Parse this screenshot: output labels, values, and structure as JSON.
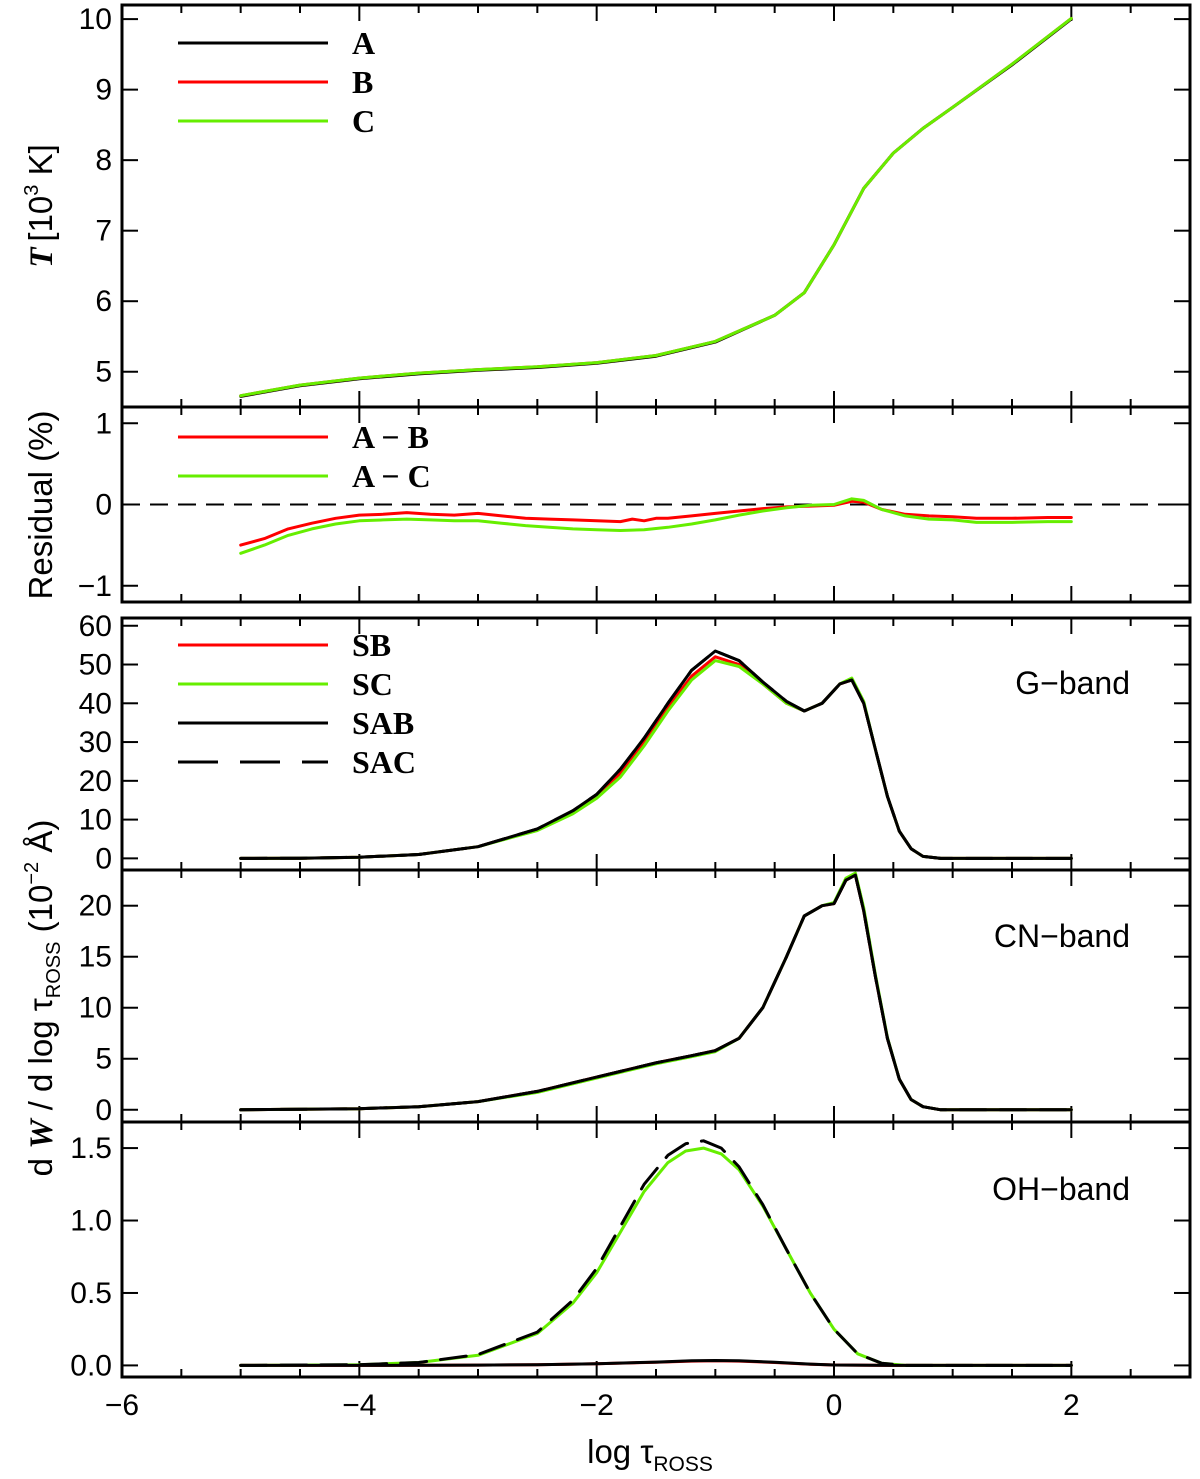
{
  "chart_data": [
    {
      "type": "line",
      "panel": "temperature",
      "ylabel": {
        "sym": "T",
        "rest": "[10",
        "sup": "3",
        "end": " K]"
      },
      "xlim": [
        -6,
        3
      ],
      "ylim": [
        4.5,
        10.2
      ],
      "yticks": [
        "5",
        "6",
        "7",
        "8",
        "9",
        "10"
      ],
      "ytick_values": [
        5,
        6,
        7,
        8,
        9,
        10
      ],
      "legend": [
        "A",
        "B",
        "C"
      ],
      "series": [
        {
          "name": "A",
          "color": "#000000",
          "x": [
            -5,
            -4.5,
            -4,
            -3.5,
            -3,
            -2.5,
            -2,
            -1.5,
            -1,
            -0.5,
            -0.25,
            0,
            0.25,
            0.5,
            0.75,
            1,
            1.5,
            2
          ],
          "y": [
            4.65,
            4.8,
            4.9,
            4.97,
            5.02,
            5.06,
            5.12,
            5.22,
            5.42,
            5.8,
            6.12,
            6.8,
            7.6,
            8.1,
            8.45,
            8.75,
            9.35,
            10.0
          ]
        },
        {
          "name": "B",
          "color": "#ff0000",
          "x": [
            -5,
            -4.5,
            -4,
            -3.5,
            -3,
            -2.5,
            -2,
            -1.5,
            -1,
            -0.5,
            -0.25,
            0,
            0.25,
            0.5,
            0.75,
            1,
            1.5,
            2
          ],
          "y": [
            4.66,
            4.81,
            4.91,
            4.98,
            5.03,
            5.07,
            5.13,
            5.23,
            5.43,
            5.8,
            6.12,
            6.8,
            7.6,
            8.1,
            8.45,
            8.75,
            9.36,
            10.01
          ]
        },
        {
          "name": "C",
          "color": "#66ee00",
          "x": [
            -5,
            -4.5,
            -4,
            -3.5,
            -3,
            -2.5,
            -2,
            -1.5,
            -1,
            -0.5,
            -0.25,
            0,
            0.25,
            0.5,
            0.75,
            1,
            1.5,
            2
          ],
          "y": [
            4.66,
            4.81,
            4.91,
            4.98,
            5.03,
            5.07,
            5.13,
            5.23,
            5.43,
            5.8,
            6.12,
            6.8,
            7.6,
            8.1,
            8.45,
            8.75,
            9.36,
            10.01
          ]
        }
      ]
    },
    {
      "type": "line",
      "panel": "residual",
      "ylabel": "Residual (%)",
      "xlim": [
        -6,
        3
      ],
      "ylim": [
        -1.2,
        1.2
      ],
      "yticks": [
        "−1",
        "0",
        "1"
      ],
      "ytick_values": [
        -1,
        0,
        1
      ],
      "legend": [
        "A − B",
        "A − C"
      ],
      "zero_line": "dashed",
      "series": [
        {
          "name": "A − B",
          "color": "#ff0000",
          "x": [
            -5,
            -4.8,
            -4.6,
            -4.4,
            -4.2,
            -4,
            -3.8,
            -3.6,
            -3.4,
            -3.2,
            -3,
            -2.8,
            -2.6,
            -2.4,
            -2.2,
            -2,
            -1.8,
            -1.7,
            -1.6,
            -1.5,
            -1.4,
            -1.2,
            -1,
            -0.8,
            -0.6,
            -0.4,
            -0.2,
            0,
            0.15,
            0.25,
            0.4,
            0.6,
            0.8,
            1,
            1.2,
            1.5,
            1.8,
            2
          ],
          "y": [
            -0.5,
            -0.42,
            -0.3,
            -0.23,
            -0.17,
            -0.13,
            -0.12,
            -0.1,
            -0.12,
            -0.13,
            -0.11,
            -0.14,
            -0.17,
            -0.18,
            -0.19,
            -0.2,
            -0.21,
            -0.18,
            -0.2,
            -0.17,
            -0.17,
            -0.14,
            -0.11,
            -0.08,
            -0.05,
            -0.03,
            -0.02,
            -0.01,
            0.04,
            0.03,
            -0.06,
            -0.12,
            -0.14,
            -0.15,
            -0.17,
            -0.17,
            -0.16,
            -0.16
          ]
        },
        {
          "name": "A − C",
          "color": "#66ee00",
          "x": [
            -5,
            -4.8,
            -4.6,
            -4.4,
            -4.2,
            -4,
            -3.8,
            -3.6,
            -3.4,
            -3.2,
            -3,
            -2.8,
            -2.6,
            -2.4,
            -2.2,
            -2,
            -1.8,
            -1.6,
            -1.4,
            -1.2,
            -1,
            -0.8,
            -0.6,
            -0.4,
            -0.2,
            0,
            0.15,
            0.25,
            0.4,
            0.6,
            0.8,
            1,
            1.2,
            1.5,
            1.8,
            2
          ],
          "y": [
            -0.6,
            -0.5,
            -0.38,
            -0.3,
            -0.24,
            -0.2,
            -0.19,
            -0.18,
            -0.19,
            -0.2,
            -0.2,
            -0.23,
            -0.26,
            -0.28,
            -0.3,
            -0.31,
            -0.32,
            -0.31,
            -0.28,
            -0.24,
            -0.19,
            -0.13,
            -0.08,
            -0.04,
            -0.01,
            0.0,
            0.07,
            0.05,
            -0.06,
            -0.14,
            -0.18,
            -0.19,
            -0.22,
            -0.22,
            -0.21,
            -0.21
          ]
        }
      ]
    },
    {
      "type": "line",
      "panel": "G-band",
      "band_label": "G−band",
      "xlim": [
        -6,
        3
      ],
      "ylim": [
        -3,
        62
      ],
      "yticks": [
        "0",
        "10",
        "20",
        "30",
        "40",
        "50",
        "60"
      ],
      "ytick_values": [
        0,
        10,
        20,
        30,
        40,
        50,
        60
      ],
      "legend": [
        "SB",
        "SC",
        "SAB",
        "SAC"
      ],
      "series": [
        {
          "name": "SB",
          "color": "#ff0000",
          "x": [
            -5,
            -4.5,
            -4,
            -3.5,
            -3,
            -2.5,
            -2.2,
            -2,
            -1.8,
            -1.6,
            -1.4,
            -1.2,
            -1.0,
            -0.8,
            -0.6,
            -0.4,
            -0.25,
            -0.1,
            0.05,
            0.15,
            0.25,
            0.35,
            0.45,
            0.55,
            0.65,
            0.75,
            0.9,
            1.2,
            2
          ],
          "y": [
            0,
            0.05,
            0.3,
            1,
            3,
            7.5,
            12,
            16,
            22,
            30,
            39,
            47,
            52,
            50,
            45,
            40,
            38,
            40,
            45,
            46,
            40,
            28,
            16,
            7,
            2.5,
            0.5,
            0,
            0,
            0
          ]
        },
        {
          "name": "SC",
          "color": "#66ee00",
          "x": [
            -5,
            -4.5,
            -4,
            -3.5,
            -3,
            -2.5,
            -2.2,
            -2,
            -1.8,
            -1.6,
            -1.4,
            -1.2,
            -1.0,
            -0.8,
            -0.6,
            -0.4,
            -0.25,
            -0.1,
            0.05,
            0.15,
            0.25,
            0.35,
            0.45,
            0.55,
            0.65,
            0.75,
            0.9,
            1.2,
            2
          ],
          "y": [
            0,
            0.05,
            0.3,
            1,
            3,
            7.2,
            11.5,
            15.5,
            21,
            29,
            38,
            46,
            51,
            49.5,
            45,
            40,
            38,
            40,
            45,
            46.5,
            40.5,
            28,
            16,
            7,
            2.5,
            0.5,
            0,
            0,
            0
          ]
        },
        {
          "name": "SAB",
          "color": "#000000",
          "x": [
            -5,
            -4.5,
            -4,
            -3.5,
            -3,
            -2.5,
            -2.2,
            -2,
            -1.8,
            -1.6,
            -1.4,
            -1.2,
            -1.0,
            -0.8,
            -0.6,
            -0.4,
            -0.25,
            -0.1,
            0.05,
            0.15,
            0.25,
            0.35,
            0.45,
            0.55,
            0.65,
            0.75,
            0.9,
            1.2,
            2
          ],
          "y": [
            0,
            0.05,
            0.3,
            1,
            3,
            7.6,
            12.3,
            16.5,
            23,
            31,
            40,
            48.5,
            53.5,
            51,
            45.5,
            40.5,
            38,
            40,
            45,
            46,
            40,
            28,
            16,
            7,
            2.5,
            0.5,
            0,
            0,
            0
          ]
        },
        {
          "name": "SAC",
          "color": "#000000",
          "dash": true,
          "x": [
            -5,
            -4.5,
            -4,
            -3.5,
            -3,
            -2.5,
            -2.2,
            -2,
            -1.8,
            -1.6,
            -1.4,
            -1.2,
            -1.0,
            -0.8,
            -0.6,
            -0.4,
            -0.25,
            -0.1,
            0.05,
            0.15,
            0.25,
            0.35,
            0.45,
            0.55,
            0.65,
            0.75,
            0.9,
            1.2,
            2
          ],
          "y": [
            0,
            0.05,
            0.3,
            1,
            3,
            7.6,
            12.3,
            16.5,
            23,
            31,
            40,
            48.5,
            53.5,
            51,
            45.5,
            40.5,
            38,
            40,
            45,
            46,
            40,
            28,
            16,
            7,
            2.5,
            0.5,
            0,
            0,
            0
          ]
        }
      ]
    },
    {
      "type": "line",
      "panel": "CN-band",
      "band_label": "CN−band",
      "xlim": [
        -6,
        3
      ],
      "ylim": [
        -1.2,
        23.5
      ],
      "yticks": [
        "0",
        "5",
        "10",
        "15",
        "20"
      ],
      "ytick_values": [
        0,
        5,
        10,
        15,
        20
      ],
      "series": [
        {
          "name": "SB",
          "color": "#ff0000",
          "x": [
            -5,
            -4,
            -3.5,
            -3,
            -2.5,
            -2,
            -1.5,
            -1.2,
            -1.0,
            -0.8,
            -0.6,
            -0.4,
            -0.25,
            -0.1,
            0.0,
            0.1,
            0.18,
            0.25,
            0.35,
            0.45,
            0.55,
            0.65,
            0.75,
            0.9,
            1.2,
            2
          ],
          "y": [
            0,
            0.1,
            0.3,
            0.8,
            1.8,
            3.2,
            4.6,
            5.3,
            5.8,
            7,
            10,
            15,
            19,
            20,
            20.2,
            22.5,
            23,
            19.5,
            13,
            7,
            3,
            1,
            0.3,
            0,
            0,
            0
          ]
        },
        {
          "name": "SC",
          "color": "#66ee00",
          "x": [
            -5,
            -4,
            -3.5,
            -3,
            -2.5,
            -2,
            -1.5,
            -1.2,
            -1.0,
            -0.8,
            -0.6,
            -0.4,
            -0.25,
            -0.1,
            0.0,
            0.1,
            0.18,
            0.25,
            0.35,
            0.45,
            0.55,
            0.65,
            0.75,
            0.9,
            1.2,
            2
          ],
          "y": [
            0,
            0.1,
            0.3,
            0.8,
            1.7,
            3.1,
            4.5,
            5.2,
            5.7,
            7,
            10,
            15,
            19,
            20,
            20.3,
            22.7,
            23.2,
            19.8,
            13.2,
            7.1,
            3,
            1,
            0.3,
            0,
            0,
            0
          ]
        },
        {
          "name": "SAB",
          "color": "#000000",
          "x": [
            -5,
            -4,
            -3.5,
            -3,
            -2.5,
            -2,
            -1.5,
            -1.2,
            -1.0,
            -0.8,
            -0.6,
            -0.4,
            -0.25,
            -0.1,
            0.0,
            0.1,
            0.18,
            0.25,
            0.35,
            0.45,
            0.55,
            0.65,
            0.75,
            0.9,
            1.2,
            2
          ],
          "y": [
            0,
            0.1,
            0.3,
            0.8,
            1.8,
            3.2,
            4.6,
            5.3,
            5.8,
            7,
            10,
            15,
            19,
            20,
            20.2,
            22.5,
            23,
            19.5,
            13,
            7,
            3,
            1,
            0.3,
            0,
            0,
            0
          ]
        },
        {
          "name": "SAC",
          "color": "#000000",
          "dash": true,
          "x": [
            -5,
            -4,
            -3.5,
            -3,
            -2.5,
            -2,
            -1.5,
            -1.2,
            -1.0,
            -0.8,
            -0.6,
            -0.4,
            -0.25,
            -0.1,
            0.0,
            0.1,
            0.18,
            0.25,
            0.35,
            0.45,
            0.55,
            0.65,
            0.75,
            0.9,
            1.2,
            2
          ],
          "y": [
            0,
            0.1,
            0.3,
            0.8,
            1.8,
            3.2,
            4.6,
            5.3,
            5.8,
            7,
            10,
            15,
            19,
            20,
            20.2,
            22.5,
            23,
            19.5,
            13,
            7,
            3,
            1,
            0.3,
            0,
            0,
            0
          ]
        }
      ]
    },
    {
      "type": "line",
      "panel": "OH-band",
      "band_label": "OH−band",
      "xlabel": {
        "main": "log τ",
        "sub": "ROSS"
      },
      "shared_ylabel": {
        "pre": "d ",
        "sym": "W",
        "mid": " / d log τ",
        "sub": "ROSS",
        "post": " (10",
        "sup": "−2",
        "end": " Å)"
      },
      "xlim": [
        -6,
        3
      ],
      "xticks": [
        "−6",
        "−4",
        "−2",
        "0",
        "2"
      ],
      "xtick_values": [
        -6,
        -4,
        -2,
        0,
        2
      ],
      "ylim": [
        -0.08,
        1.68
      ],
      "yticks": [
        "0.0",
        "0.5",
        "1.0",
        "1.5"
      ],
      "ytick_values": [
        0,
        0.5,
        1.0,
        1.5
      ],
      "series": [
        {
          "name": "SB",
          "color": "#ff0000",
          "x": [
            -5,
            -4,
            -3,
            -2.5,
            -2,
            -1.5,
            -1.2,
            -1.0,
            -0.8,
            -0.5,
            -0.2,
            0,
            0.5,
            2
          ],
          "y": [
            0,
            0.0,
            0.002,
            0.005,
            0.012,
            0.022,
            0.03,
            0.032,
            0.03,
            0.02,
            0.008,
            0.003,
            0,
            0
          ]
        },
        {
          "name": "SC",
          "color": "#66ee00",
          "x": [
            -5,
            -4,
            -3.5,
            -3,
            -2.5,
            -2.2,
            -2.0,
            -1.8,
            -1.6,
            -1.4,
            -1.25,
            -1.1,
            -0.95,
            -0.8,
            -0.6,
            -0.4,
            -0.2,
            0,
            0.2,
            0.4,
            0.6,
            2
          ],
          "y": [
            0,
            0.005,
            0.02,
            0.07,
            0.22,
            0.43,
            0.64,
            0.92,
            1.2,
            1.4,
            1.48,
            1.5,
            1.46,
            1.35,
            1.1,
            0.8,
            0.5,
            0.25,
            0.08,
            0.015,
            0,
            0
          ]
        },
        {
          "name": "SAB",
          "color": "#000000",
          "x": [
            -5,
            -4,
            -3,
            -2.5,
            -2,
            -1.5,
            -1.2,
            -1.0,
            -0.8,
            -0.5,
            -0.2,
            0,
            0.5,
            2
          ],
          "y": [
            0,
            0.0,
            0.002,
            0.005,
            0.012,
            0.023,
            0.032,
            0.034,
            0.032,
            0.022,
            0.009,
            0.003,
            0,
            0
          ]
        },
        {
          "name": "SAC",
          "color": "#000000",
          "dash": true,
          "x": [
            -5,
            -4,
            -3.5,
            -3,
            -2.5,
            -2.2,
            -2.0,
            -1.8,
            -1.6,
            -1.4,
            -1.25,
            -1.1,
            -0.95,
            -0.8,
            -0.6,
            -0.4,
            -0.2,
            0,
            0.2,
            0.4,
            0.6,
            2
          ],
          "y": [
            0,
            0.005,
            0.02,
            0.075,
            0.23,
            0.45,
            0.67,
            0.96,
            1.25,
            1.45,
            1.53,
            1.55,
            1.5,
            1.37,
            1.11,
            0.8,
            0.5,
            0.25,
            0.08,
            0.015,
            0,
            0
          ]
        }
      ]
    }
  ]
}
